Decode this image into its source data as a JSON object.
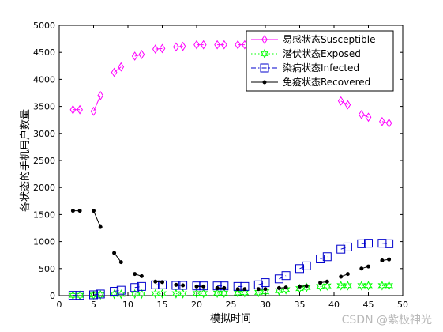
{
  "chart_data": {
    "type": "line",
    "title": "",
    "xlabel": "模拟时间",
    "ylabel": "各状态的手机用户数量",
    "xlim": [
      0,
      50
    ],
    "ylim": [
      0,
      5000
    ],
    "xticks": [
      0,
      5,
      10,
      15,
      20,
      25,
      30,
      35,
      40,
      45,
      50
    ],
    "yticks": [
      0,
      500,
      1000,
      1500,
      2000,
      2500,
      3000,
      3500,
      4000,
      4500,
      5000
    ],
    "grid": false,
    "legend_position": "top-right",
    "x": [
      2,
      3,
      5,
      6,
      8,
      9,
      11,
      12,
      14,
      15,
      17,
      18,
      20,
      21,
      23,
      24,
      26,
      27,
      29,
      30,
      32,
      33,
      35,
      36,
      38,
      39,
      41,
      42,
      44,
      45,
      47,
      48
    ],
    "series": [
      {
        "name": "易感状态Susceptible",
        "color": "#ff00ff",
        "line": "solid",
        "marker": "diamond",
        "values": [
          3440,
          3440,
          3410,
          3700,
          4130,
          4230,
          4430,
          4460,
          4560,
          4570,
          4600,
          4610,
          4640,
          4640,
          4640,
          4640,
          4640,
          4640,
          4640,
          4620,
          4590,
          4550,
          4420,
          4340,
          4160,
          4030,
          3600,
          3530,
          3350,
          3300,
          3220,
          3190
        ]
      },
      {
        "name": "潜伏状态Exposed",
        "color": "#00ff00",
        "line": "dotted",
        "marker": "hexagram",
        "values": [
          5,
          5,
          10,
          15,
          25,
          25,
          30,
          30,
          35,
          35,
          35,
          35,
          40,
          40,
          45,
          45,
          50,
          55,
          60,
          70,
          90,
          110,
          130,
          150,
          170,
          180,
          185,
          185,
          185,
          185,
          185,
          185
        ]
      },
      {
        "name": "染病状态Infected",
        "color": "#0000cc",
        "line": "dashdot",
        "marker": "square",
        "values": [
          5,
          5,
          15,
          30,
          80,
          100,
          150,
          170,
          200,
          200,
          190,
          190,
          180,
          180,
          180,
          180,
          170,
          170,
          200,
          240,
          310,
          370,
          500,
          550,
          680,
          720,
          860,
          900,
          960,
          970,
          970,
          960
        ]
      },
      {
        "name": "免疫状态Recovered",
        "color": "#000000",
        "line": "solid",
        "marker": "dot",
        "values": [
          1570,
          1570,
          1570,
          1270,
          790,
          620,
          400,
          360,
          260,
          250,
          200,
          190,
          170,
          170,
          140,
          140,
          120,
          120,
          120,
          120,
          140,
          150,
          170,
          180,
          240,
          260,
          350,
          400,
          500,
          540,
          650,
          670
        ]
      }
    ]
  },
  "watermark": "CSDN @紫极神光"
}
